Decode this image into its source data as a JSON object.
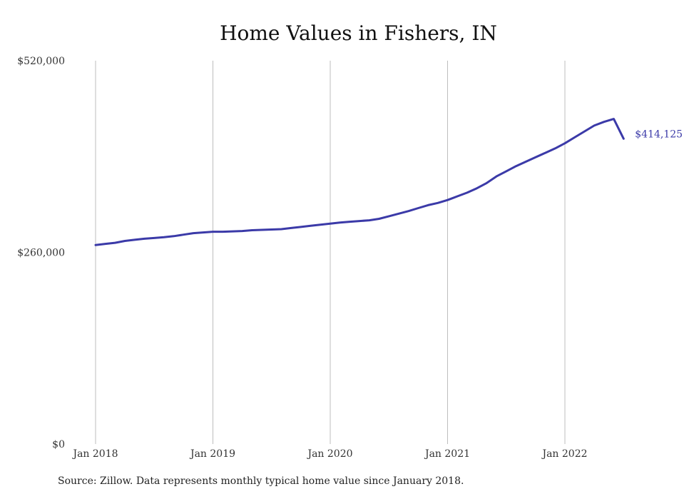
{
  "chart_data": {
    "type": "line",
    "title": "Home Values in Fishers, IN",
    "xlabel": "",
    "ylabel": "",
    "ylim": [
      0,
      520000
    ],
    "y_ticks": [
      {
        "value": 0,
        "label": "$0"
      },
      {
        "value": 260000,
        "label": "$260,000"
      },
      {
        "value": 520000,
        "label": "$520,000"
      }
    ],
    "x_ticks": [
      {
        "value": "2018-01",
        "label": "Jan 2018"
      },
      {
        "value": "2019-01",
        "label": "Jan 2019"
      },
      {
        "value": "2020-01",
        "label": "Jan 2020"
      },
      {
        "value": "2021-01",
        "label": "Jan 2021"
      },
      {
        "value": "2022-01",
        "label": "Jan 2022"
      }
    ],
    "grid": "vertical",
    "line_color": "#3b3aa8",
    "end_label": "$414,125",
    "series": [
      {
        "x": [
          "2018-01",
          "2018-02",
          "2018-03",
          "2018-04",
          "2018-05",
          "2018-06",
          "2018-07",
          "2018-08",
          "2018-09",
          "2018-10",
          "2018-11",
          "2018-12",
          "2019-01",
          "2019-02",
          "2019-03",
          "2019-04",
          "2019-05",
          "2019-06",
          "2019-07",
          "2019-08",
          "2019-09",
          "2019-10",
          "2019-11",
          "2019-12",
          "2020-01",
          "2020-02",
          "2020-03",
          "2020-04",
          "2020-05",
          "2020-06",
          "2020-07",
          "2020-08",
          "2020-09",
          "2020-10",
          "2020-11",
          "2020-12",
          "2021-01",
          "2021-02",
          "2021-03",
          "2021-04",
          "2021-05",
          "2021-06",
          "2021-07",
          "2021-08",
          "2021-09",
          "2021-10",
          "2021-11",
          "2021-12",
          "2022-01",
          "2022-02",
          "2022-03",
          "2022-04",
          "2022-05",
          "2022-06",
          "2022-07"
        ],
        "values": [
          270000,
          271500,
          273000,
          275500,
          277000,
          278500,
          279500,
          280500,
          282000,
          284000,
          286000,
          287000,
          288000,
          288000,
          288500,
          289000,
          290000,
          290500,
          291000,
          291500,
          293000,
          294500,
          296000,
          297500,
          299000,
          300500,
          301500,
          302500,
          303500,
          305500,
          309000,
          312500,
          316000,
          320000,
          324000,
          327000,
          331000,
          336000,
          341000,
          347000,
          354000,
          363000,
          370000,
          377000,
          383000,
          389000,
          395000,
          401000,
          408000,
          416000,
          424000,
          432000,
          437000,
          441000,
          414125
        ]
      }
    ]
  },
  "source_note": "Source: Zillow. Data represents monthly typical home value since January 2018."
}
